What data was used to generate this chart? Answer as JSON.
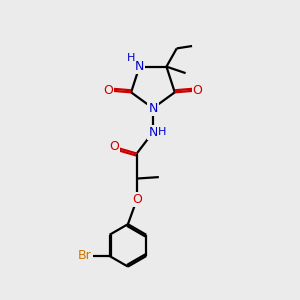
{
  "bg_color": "#ebebeb",
  "atom_colors": {
    "N": "#0000cc",
    "O": "#cc0000",
    "Br": "#cc7700",
    "H": "#0000cc"
  },
  "bond_color": "#000000",
  "line_width": 1.6
}
